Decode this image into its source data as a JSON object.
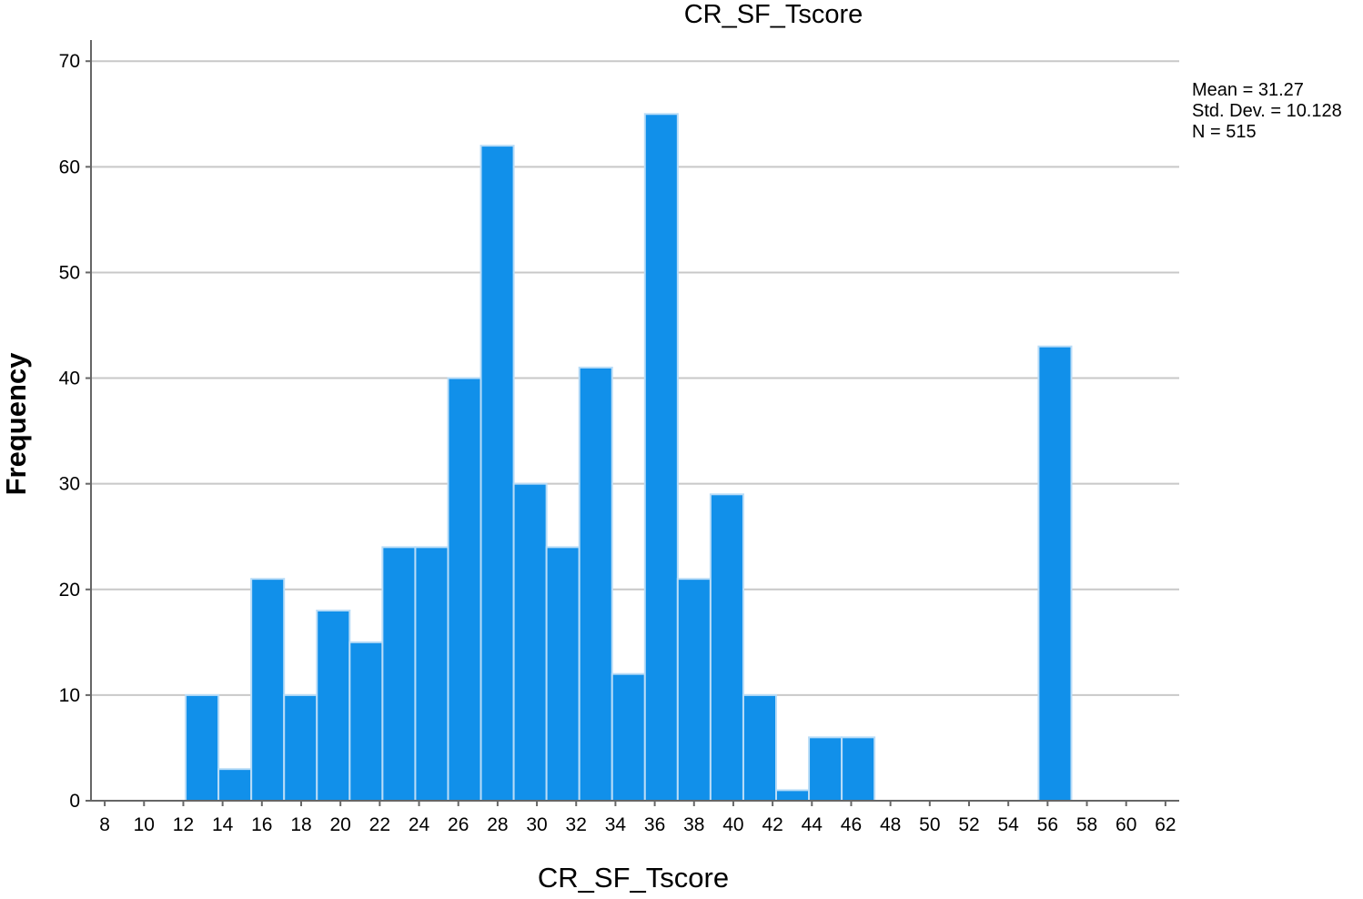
{
  "chart_data": {
    "type": "bar",
    "title": "CR_SF_Tscore",
    "xlabel": "CR_SF_Tscore",
    "ylabel": "Frequency",
    "x_ticks": [
      8,
      10,
      12,
      14,
      16,
      18,
      20,
      22,
      24,
      26,
      28,
      30,
      32,
      34,
      36,
      38,
      40,
      42,
      44,
      46,
      48,
      50,
      52,
      54,
      56,
      58,
      60,
      62
    ],
    "xlim": [
      7.3,
      62.7
    ],
    "ylim": [
      0,
      72
    ],
    "y_ticks": [
      0,
      10,
      20,
      30,
      40,
      50,
      60,
      70
    ],
    "bin_width": 1.67,
    "bins": [
      {
        "start": 12.12,
        "count": 10
      },
      {
        "start": 13.79,
        "count": 3
      },
      {
        "start": 15.46,
        "count": 21
      },
      {
        "start": 17.13,
        "count": 10
      },
      {
        "start": 18.8,
        "count": 18
      },
      {
        "start": 20.47,
        "count": 15
      },
      {
        "start": 22.14,
        "count": 24
      },
      {
        "start": 23.81,
        "count": 24
      },
      {
        "start": 25.48,
        "count": 40
      },
      {
        "start": 27.15,
        "count": 62
      },
      {
        "start": 28.82,
        "count": 30
      },
      {
        "start": 30.49,
        "count": 24
      },
      {
        "start": 32.16,
        "count": 41
      },
      {
        "start": 33.83,
        "count": 12
      },
      {
        "start": 35.5,
        "count": 65
      },
      {
        "start": 37.17,
        "count": 21
      },
      {
        "start": 38.84,
        "count": 29
      },
      {
        "start": 40.51,
        "count": 10
      },
      {
        "start": 42.18,
        "count": 1
      },
      {
        "start": 43.85,
        "count": 6
      },
      {
        "start": 45.52,
        "count": 6
      },
      {
        "start": 55.54,
        "count": 43
      }
    ],
    "grid": true,
    "bar_color": "#1190ea",
    "bar_edge_color": "#b9dcf7",
    "grid_color": "#c8c8c8",
    "stats": [
      "Mean = 31.27",
      "Std. Dev. = 10.128",
      "N = 515"
    ]
  }
}
